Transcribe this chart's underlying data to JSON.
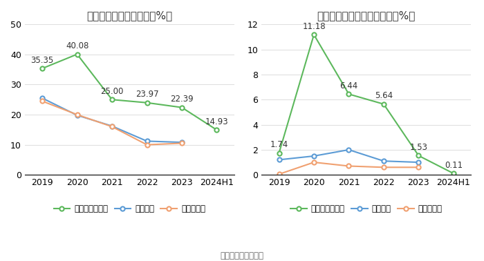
{
  "left_title": "近年来资产负债率情况（%）",
  "right_title": "近年来有息资产负债率情况（%）",
  "x_labels": [
    "2019",
    "2020",
    "2021",
    "2022",
    "2023",
    "2024H1"
  ],
  "left": {
    "company": [
      35.35,
      40.08,
      25.0,
      23.97,
      22.39,
      14.93
    ],
    "company_labels": [
      "35.35",
      "40.08",
      "25.00",
      "23.97",
      "22.39",
      "14.93"
    ],
    "industry_mean": [
      25.5,
      19.8,
      16.2,
      11.2,
      10.8,
      null
    ],
    "industry_median": [
      24.5,
      20.0,
      16.0,
      10.0,
      10.5,
      null
    ]
  },
  "right": {
    "company": [
      1.74,
      11.18,
      6.44,
      5.64,
      1.53,
      0.11
    ],
    "company_labels": [
      "1.74",
      "11.18",
      "6.44",
      "5.64",
      "1.53",
      "0.11"
    ],
    "industry_mean": [
      1.2,
      1.5,
      2.0,
      1.1,
      1.0,
      null
    ],
    "industry_median": [
      0.05,
      1.0,
      0.7,
      0.6,
      0.6,
      null
    ]
  },
  "left_ylim": [
    0,
    50
  ],
  "left_yticks": [
    0,
    10,
    20,
    30,
    40,
    50
  ],
  "right_ylim": [
    0,
    12
  ],
  "right_yticks": [
    0,
    2,
    4,
    6,
    8,
    10,
    12
  ],
  "green_color": "#5cb85c",
  "blue_color": "#5b9bd5",
  "orange_color": "#f0a070",
  "legend_labels_left": [
    "公司资产负债率",
    "行业均值",
    "行业中位数"
  ],
  "legend_labels_right": [
    "有息资产负债率",
    "行业均值",
    "行业中位数"
  ],
  "source_text": "数据来源：恒生聚源",
  "background_color": "#ffffff",
  "title_fontsize": 11,
  "label_fontsize": 9,
  "annotation_fontsize": 8.5
}
